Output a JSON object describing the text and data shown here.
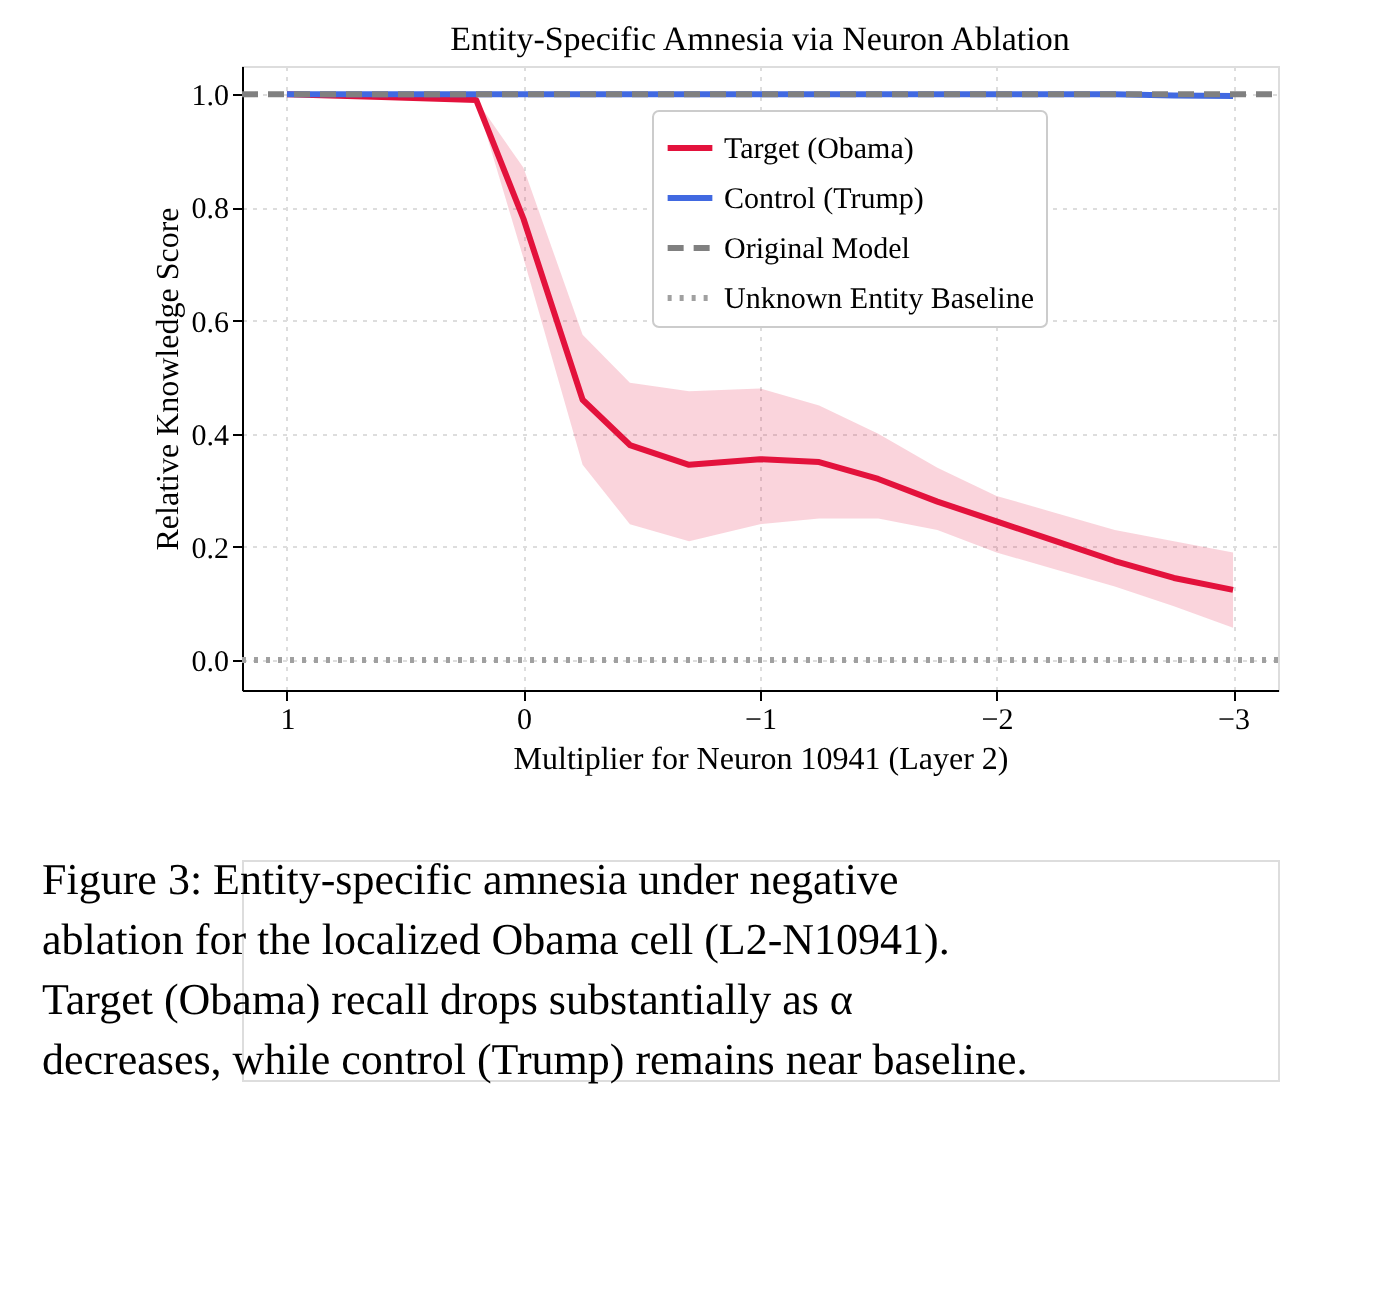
{
  "chart_data": {
    "type": "line",
    "title": "Entity-Specific Amnesia via Neuron Ablation",
    "xlabel": "Multiplier for Neuron 10941 (Layer 2)",
    "ylabel": "Relative Knowledge Score",
    "x": [
      1,
      0.6,
      0.2,
      0,
      -0.25,
      -0.45,
      -0.7,
      -1.0,
      -1.25,
      -1.5,
      -1.75,
      -2.0,
      -2.25,
      -2.5,
      -2.75,
      -3.0
    ],
    "series": [
      {
        "name": "Target (Obama)",
        "color": "#e3123c",
        "values": [
          1.0,
          0.995,
          0.99,
          0.78,
          0.46,
          0.38,
          0.345,
          0.355,
          0.35,
          0.32,
          0.28,
          0.245,
          0.21,
          0.175,
          0.145,
          0.124
        ],
        "lower": [
          1.0,
          0.995,
          0.99,
          0.71,
          0.345,
          0.24,
          0.21,
          0.24,
          0.25,
          0.25,
          0.23,
          0.19,
          0.16,
          0.13,
          0.095,
          0.057
        ],
        "upper": [
          1.0,
          0.995,
          0.99,
          0.87,
          0.575,
          0.49,
          0.475,
          0.48,
          0.45,
          0.4,
          0.34,
          0.29,
          0.26,
          0.23,
          0.21,
          0.19
        ]
      },
      {
        "name": "Control (Trump)",
        "color": "#4169e1",
        "values": [
          1.0,
          1.0,
          1.0,
          1.0,
          1.0,
          1.0,
          1.0,
          1.0,
          1.0,
          1.0,
          1.0,
          1.0,
          1.0,
          1.0,
          0.998,
          0.997
        ]
      }
    ],
    "ref_lines": [
      {
        "axis": "y",
        "value": 1.0,
        "label": "Original Model",
        "color": "#808080",
        "line_style": "dashed"
      },
      {
        "axis": "y",
        "value": 0.0,
        "label": "Unknown Entity Baseline",
        "color": "#a0a0a0",
        "line_style": "dotted"
      }
    ],
    "xlim": [
      1.19,
      -3.19
    ],
    "ylim": [
      -0.053,
      1.05
    ],
    "xticks": [
      1,
      0,
      {
        "value": -1,
        "label": "−1"
      },
      {
        "value": -2,
        "label": "−2"
      },
      {
        "value": -3,
        "label": "−3"
      }
    ],
    "yticks": [
      {
        "value": 0,
        "label": "0.0"
      },
      {
        "value": 0.2,
        "label": "0.2"
      },
      {
        "value": 0.4,
        "label": "0.4"
      },
      {
        "value": 0.6,
        "label": "0.6"
      },
      {
        "value": 0.8,
        "label": "0.8"
      },
      {
        "value": 1.0,
        "label": "1.0"
      }
    ],
    "grid": true,
    "legend": "right",
    "annotations": [
      "Figure 3: Entity-specific amnesia under negative ablation for the localized Obama cell (L2-N10941). Target (Obama) recall drops substantially as α decreases, while control (Trump) remains near baseline."
    ]
  }
}
